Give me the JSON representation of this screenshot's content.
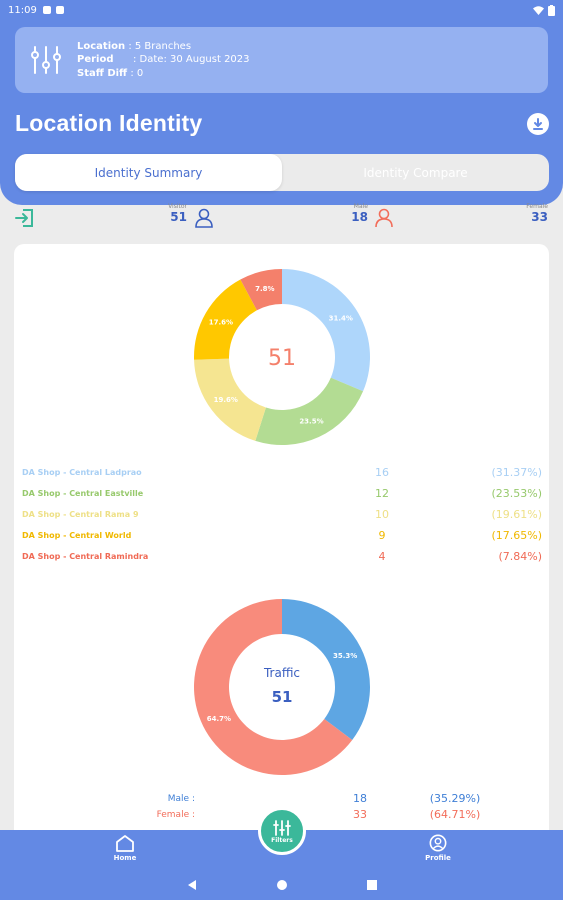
{
  "status_bar": {
    "time": "11:09"
  },
  "filters": {
    "location_label": "Location",
    "location_value": ": 5 Branches",
    "period_label": "Period",
    "period_value": ": Date: 30 August 2023",
    "staff_label": "Staff Diff",
    "staff_value": ": 0"
  },
  "page": {
    "title": "Location Identity"
  },
  "tabs": {
    "summary": "Identity Summary",
    "compare": "Identity Compare"
  },
  "stats": {
    "visitor_label": "Visitor",
    "visitor_value": "51",
    "male_label": "Male",
    "male_value": "18",
    "female_label": "Female",
    "female_value": "33"
  },
  "chart_data": [
    {
      "type": "pie",
      "center_text": "51",
      "categories": [
        "DA Shop - Central Ladprao",
        "DA Shop - Central Eastville",
        "DA Shop - Central Rama 9",
        "DA Shop - Central World",
        "DA Shop - Central Ramindra"
      ],
      "values": [
        16,
        12,
        10,
        9,
        4
      ],
      "slice_labels": [
        "31.4%",
        "23.5%",
        "19.6%",
        "17.6%",
        "7.8%"
      ],
      "percent_text": [
        "(31.37%)",
        "(23.53%)",
        "(19.61%)",
        "(17.65%)",
        "(7.84%)"
      ],
      "colors": [
        "#aed6fb",
        "#b3dc93",
        "#f5e591",
        "#ffc800",
        "#f4806b"
      ],
      "legend_colors": [
        "#a8cff4",
        "#97c96c",
        "#eee087",
        "#f0b800",
        "#f06a55"
      ]
    },
    {
      "type": "pie",
      "center_title": "Traffic",
      "center_text": "51",
      "categories": [
        "Male :",
        "Female :"
      ],
      "values": [
        18,
        33
      ],
      "slice_labels": [
        "35.3%",
        "64.7%"
      ],
      "percent_text": [
        "(35.29%)",
        "(64.71%)"
      ],
      "colors": [
        "#5ea6e3",
        "#f88b7c"
      ],
      "legend_colors": [
        "#3f7fd6",
        "#f26d5a"
      ]
    }
  ],
  "nav": {
    "home": "Home",
    "filters": "Filters",
    "profile": "Profile"
  }
}
